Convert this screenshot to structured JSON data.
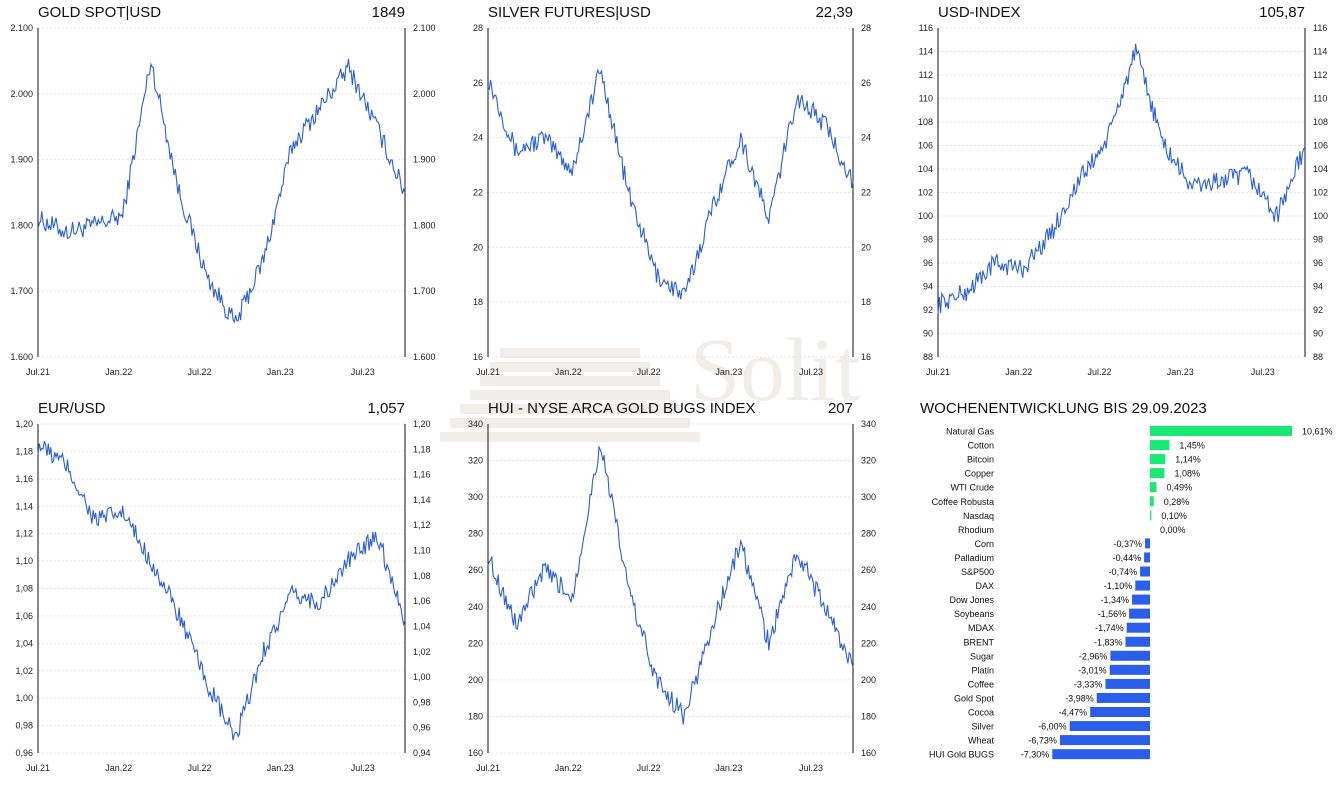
{
  "watermark": {
    "text": "Solit"
  },
  "charts": [
    {
      "title": "GOLD SPOT|USD",
      "last_value": "1849",
      "ylim": [
        1600,
        2100
      ],
      "yticks": [
        "1.600",
        "1.700",
        "1.800",
        "1.900",
        "2.000",
        "2.100"
      ],
      "xticks": [
        "Jul.21",
        "Jan.22",
        "Jul.22",
        "Jan.23",
        "Jul.23"
      ]
    },
    {
      "title": "SILVER FUTURES|USD",
      "last_value": "22,39",
      "ylim": [
        16,
        28
      ],
      "yticks": [
        "16",
        "18",
        "20",
        "22",
        "24",
        "26",
        "28"
      ],
      "xticks": [
        "Jul.21",
        "Jan.22",
        "Jul.22",
        "Jan.23",
        "Jul.23"
      ]
    },
    {
      "title": "USD-INDEX",
      "last_value": "105,87",
      "ylim": [
        88,
        116
      ],
      "yticks": [
        "88",
        "90",
        "92",
        "94",
        "96",
        "98",
        "100",
        "102",
        "104",
        "106",
        "108",
        "110",
        "112",
        "114",
        "116"
      ],
      "xticks": [
        "Jul.21",
        "Jan.22",
        "Jul.22",
        "Jan.23",
        "Jul.23"
      ]
    },
    {
      "title": "EUR/USD",
      "last_value": "1,057",
      "ylim": [
        0.96,
        1.2
      ],
      "yticks": [
        "0,96",
        "0,98",
        "1,00",
        "1,02",
        "1,04",
        "1,06",
        "1,08",
        "1,10",
        "1,12",
        "1,14",
        "1,16",
        "1,18",
        "1,20"
      ],
      "yticks_right": [
        "0,94",
        "0,96",
        "0,98",
        "1,00",
        "1,02",
        "1,04",
        "1,06",
        "1,08",
        "1,10",
        "1,12",
        "1,14",
        "1,16",
        "1,18",
        "1,20"
      ],
      "xticks": [
        "Jul.21",
        "Jan.22",
        "Jul.22",
        "Jan.23",
        "Jul.23"
      ]
    },
    {
      "title": "HUI - NYSE ARCA GOLD BUGS INDEX",
      "last_value": "207",
      "ylim": [
        160,
        340
      ],
      "yticks": [
        "160",
        "180",
        "200",
        "220",
        "240",
        "260",
        "280",
        "300",
        "320",
        "340"
      ],
      "xticks": [
        "Jul.21",
        "Jan.22",
        "Jul.22",
        "Jan.23",
        "Jul.23"
      ]
    }
  ],
  "chart_data": [
    {
      "type": "line",
      "title": "GOLD SPOT|USD",
      "x": [
        "2021-07",
        "2021-09",
        "2021-11",
        "2022-01",
        "2022-03",
        "2022-05",
        "2022-07",
        "2022-09",
        "2022-11",
        "2023-01",
        "2023-03",
        "2023-05",
        "2023-07",
        "2023-09"
      ],
      "series": [
        {
          "values": [
            1810,
            1790,
            1800,
            1815,
            2050,
            1850,
            1720,
            1650,
            1750,
            1920,
            1980,
            2040,
            1950,
            1849
          ]
        }
      ],
      "ylim": [
        1600,
        2100
      ],
      "grid": true,
      "color": "#2b5fd9"
    },
    {
      "type": "line",
      "title": "SILVER FUTURES|USD",
      "x": [
        "2021-07",
        "2021-09",
        "2021-11",
        "2022-01",
        "2022-03",
        "2022-05",
        "2022-07",
        "2022-09",
        "2022-11",
        "2023-01",
        "2023-03",
        "2023-05",
        "2023-07",
        "2023-09"
      ],
      "series": [
        {
          "values": [
            26.2,
            23.5,
            24.0,
            22.8,
            26.5,
            22.0,
            19.0,
            18.2,
            21.5,
            24.0,
            21.0,
            25.5,
            24.5,
            22.39
          ]
        }
      ],
      "ylim": [
        16,
        28
      ],
      "grid": true,
      "color": "#2b5fd9"
    },
    {
      "type": "line",
      "title": "USD-INDEX",
      "x": [
        "2021-07",
        "2021-09",
        "2021-11",
        "2022-01",
        "2022-03",
        "2022-05",
        "2022-07",
        "2022-09",
        "2022-11",
        "2023-01",
        "2023-03",
        "2023-05",
        "2023-07",
        "2023-09"
      ],
      "series": [
        {
          "values": [
            92.5,
            93.5,
            96.0,
            95.5,
            98.5,
            103.0,
            106.5,
            114.0,
            106.0,
            102.5,
            103.0,
            103.5,
            100.0,
            105.87
          ]
        }
      ],
      "ylim": [
        88,
        116
      ],
      "grid": true,
      "color": "#2b5fd9"
    },
    {
      "type": "line",
      "title": "EUR/USD",
      "x": [
        "2021-07",
        "2021-09",
        "2021-11",
        "2022-01",
        "2022-03",
        "2022-05",
        "2022-07",
        "2022-09",
        "2022-11",
        "2023-01",
        "2023-03",
        "2023-05",
        "2023-07",
        "2023-09"
      ],
      "series": [
        {
          "values": [
            1.185,
            1.17,
            1.13,
            1.135,
            1.1,
            1.06,
            1.01,
            0.97,
            1.035,
            1.075,
            1.07,
            1.1,
            1.12,
            1.057
          ]
        }
      ],
      "ylim": [
        0.96,
        1.2
      ],
      "grid": true,
      "color": "#2b5fd9"
    },
    {
      "type": "line",
      "title": "HUI - NYSE ARCA GOLD BUGS INDEX",
      "x": [
        "2021-07",
        "2021-09",
        "2021-11",
        "2022-01",
        "2022-03",
        "2022-05",
        "2022-07",
        "2022-09",
        "2022-11",
        "2023-01",
        "2023-03",
        "2023-05",
        "2023-07",
        "2023-09"
      ],
      "series": [
        {
          "values": [
            268,
            230,
            260,
            245,
            330,
            250,
            200,
            180,
            230,
            275,
            220,
            270,
            240,
            207
          ]
        }
      ],
      "ylim": [
        160,
        340
      ],
      "grid": true,
      "color": "#2b5fd9"
    },
    {
      "type": "bar",
      "orientation": "horizontal",
      "title": "WOCHENENTWICKLUNG BIS  29.09.2023",
      "categories": [
        "Natural Gas",
        "Cotton",
        "Bitcoin",
        "Copper",
        "WTI Crude",
        "Coffee Robusta",
        "Nasdaq",
        "Rhodium",
        "Corn",
        "Palladium",
        "S&P500",
        "DAX",
        "Dow Jones",
        "Soybeans",
        "MDAX",
        "BRENT",
        "Sugar",
        "Platin",
        "Coffee",
        "Gold Spot",
        "Cocoa",
        "Silver",
        "Wheat",
        "HUI Gold BUGS"
      ],
      "values": [
        10.61,
        1.45,
        1.14,
        1.08,
        0.49,
        0.28,
        0.1,
        0.0,
        -0.37,
        -0.44,
        -0.74,
        -1.1,
        -1.34,
        -1.56,
        -1.74,
        -1.83,
        -2.96,
        -3.01,
        -3.33,
        -3.98,
        -4.47,
        -6.0,
        -6.73,
        -7.3
      ],
      "labels": [
        "10,61%",
        "1,45%",
        "1,14%",
        "1,08%",
        "0,49%",
        "0,28%",
        "0,10%",
        "0,00%",
        "-0,37%",
        "-0,44%",
        "-0,74%",
        "-1,10%",
        "-1,34%",
        "-1,56%",
        "-1,74%",
        "-1,83%",
        "-2,96%",
        "-3,01%",
        "-3,33%",
        "-3,98%",
        "-4,47%",
        "-6,00%",
        "-6,73%",
        "-7,30%"
      ],
      "positive_color": "#19e872",
      "negative_color": "#2b5fea"
    }
  ]
}
